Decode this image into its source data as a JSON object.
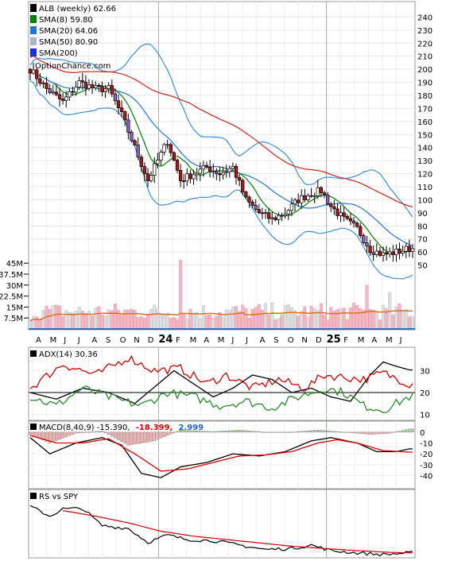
{
  "chart_data": [
    {
      "type": "candlestick",
      "panel": "price",
      "legend": [
        {
          "label": "ALB (weekly) 62.66",
          "color": "#000000"
        },
        {
          "label": "SMA(8) 59.80",
          "color": "#008000"
        },
        {
          "label": "SMA(20) 64.06",
          "color": "#1f77d0"
        },
        {
          "label": "SMA(50) 80.90",
          "color": "#aab4c8"
        },
        {
          "label": "SMA(200)",
          "color": "#1c2fd8"
        }
      ],
      "watermark": "OptionChance.com",
      "y_ticks": [
        50,
        60,
        70,
        80,
        90,
        100,
        110,
        120,
        130,
        140,
        150,
        160,
        170,
        180,
        190,
        200,
        210,
        220,
        230,
        240
      ],
      "ylim": [
        40,
        250
      ],
      "x_ticks": [
        "A",
        "M",
        "J",
        "J",
        "A",
        "S",
        "O",
        "N",
        "D",
        "24",
        "F",
        "M",
        "A",
        "M",
        "J",
        "J",
        "A",
        "S",
        "O",
        "N",
        "D",
        "25",
        "F",
        "M",
        "A",
        "M",
        "J"
      ],
      "x_bold": [
        "24",
        "25"
      ],
      "close_anchors": [
        {
          "x": 0,
          "y": 200
        },
        {
          "x": 5,
          "y": 185
        },
        {
          "x": 10,
          "y": 175
        },
        {
          "x": 15,
          "y": 190
        },
        {
          "x": 20,
          "y": 185
        },
        {
          "x": 24,
          "y": 185
        },
        {
          "x": 28,
          "y": 165
        },
        {
          "x": 32,
          "y": 140
        },
        {
          "x": 36,
          "y": 115
        },
        {
          "x": 40,
          "y": 135
        },
        {
          "x": 42,
          "y": 145
        },
        {
          "x": 46,
          "y": 115
        },
        {
          "x": 50,
          "y": 120
        },
        {
          "x": 54,
          "y": 125
        },
        {
          "x": 58,
          "y": 120
        },
        {
          "x": 62,
          "y": 125
        },
        {
          "x": 66,
          "y": 100
        },
        {
          "x": 70,
          "y": 90
        },
        {
          "x": 74,
          "y": 85
        },
        {
          "x": 78,
          "y": 90
        },
        {
          "x": 82,
          "y": 100
        },
        {
          "x": 86,
          "y": 105
        },
        {
          "x": 89,
          "y": 107
        },
        {
          "x": 92,
          "y": 95
        },
        {
          "x": 96,
          "y": 85
        },
        {
          "x": 100,
          "y": 78
        },
        {
          "x": 104,
          "y": 62
        },
        {
          "x": 108,
          "y": 58
        },
        {
          "x": 112,
          "y": 60
        },
        {
          "x": 116,
          "y": 62.66
        }
      ]
    },
    {
      "type": "bar",
      "panel": "volume",
      "y_ticks": [
        "7.5M",
        "15M",
        "22.5M",
        "30M",
        "37.5M",
        "45M"
      ],
      "ylim": [
        0,
        50
      ],
      "unit": "M",
      "spike_weeks": [
        {
          "x": 46,
          "v": 47
        },
        {
          "x": 103,
          "v": 30
        },
        {
          "x": 110,
          "v": 25
        }
      ]
    },
    {
      "type": "line",
      "panel": "adx",
      "legend": [
        {
          "label": "ADX(14) 30.36",
          "color": "#000000"
        }
      ],
      "y_ticks": [
        10,
        20,
        30
      ],
      "ylim": [
        8,
        40
      ],
      "series": [
        {
          "color": "#000000",
          "anchors": [
            {
              "x": 0,
              "y": 20
            },
            {
              "x": 8,
              "y": 17
            },
            {
              "x": 16,
              "y": 22
            },
            {
              "x": 24,
              "y": 20
            },
            {
              "x": 32,
              "y": 15
            },
            {
              "x": 40,
              "y": 25
            },
            {
              "x": 44,
              "y": 30
            },
            {
              "x": 50,
              "y": 24
            },
            {
              "x": 56,
              "y": 18
            },
            {
              "x": 62,
              "y": 22
            },
            {
              "x": 68,
              "y": 28
            },
            {
              "x": 74,
              "y": 26
            },
            {
              "x": 80,
              "y": 20
            },
            {
              "x": 86,
              "y": 22
            },
            {
              "x": 92,
              "y": 18
            },
            {
              "x": 98,
              "y": 16
            },
            {
              "x": 104,
              "y": 28
            },
            {
              "x": 108,
              "y": 34
            },
            {
              "x": 112,
              "y": 32
            },
            {
              "x": 116,
              "y": 30.36
            }
          ]
        },
        {
          "color": "#d00000",
          "anchors": [
            {
              "x": 0,
              "y": 22
            },
            {
              "x": 10,
              "y": 33
            },
            {
              "x": 20,
              "y": 28
            },
            {
              "x": 30,
              "y": 36
            },
            {
              "x": 38,
              "y": 30
            },
            {
              "x": 46,
              "y": 31
            },
            {
              "x": 54,
              "y": 24
            },
            {
              "x": 60,
              "y": 28
            },
            {
              "x": 68,
              "y": 22
            },
            {
              "x": 76,
              "y": 26
            },
            {
              "x": 84,
              "y": 22
            },
            {
              "x": 90,
              "y": 28
            },
            {
              "x": 96,
              "y": 27
            },
            {
              "x": 102,
              "y": 26
            },
            {
              "x": 108,
              "y": 29
            },
            {
              "x": 116,
              "y": 24
            }
          ]
        },
        {
          "color": "#2a8a2a",
          "anchors": [
            {
              "x": 0,
              "y": 18
            },
            {
              "x": 8,
              "y": 14
            },
            {
              "x": 16,
              "y": 22
            },
            {
              "x": 26,
              "y": 17
            },
            {
              "x": 34,
              "y": 14
            },
            {
              "x": 42,
              "y": 20
            },
            {
              "x": 50,
              "y": 18
            },
            {
              "x": 58,
              "y": 14
            },
            {
              "x": 66,
              "y": 16
            },
            {
              "x": 74,
              "y": 13
            },
            {
              "x": 82,
              "y": 18
            },
            {
              "x": 90,
              "y": 22
            },
            {
              "x": 96,
              "y": 20
            },
            {
              "x": 102,
              "y": 14
            },
            {
              "x": 108,
              "y": 12
            },
            {
              "x": 116,
              "y": 18
            }
          ]
        }
      ]
    },
    {
      "type": "line",
      "panel": "macd",
      "legend": [
        {
          "label": "MACD(8,40,9) -15.390,",
          "color": "#000000"
        },
        {
          "label": "-18.399,",
          "color": "#e00000"
        },
        {
          "label": "2.999",
          "color": "#1f5fd0"
        }
      ],
      "y_ticks": [
        0,
        -10,
        -20,
        -30,
        -40
      ],
      "ylim": [
        -50,
        8
      ],
      "series": [
        {
          "color": "#000000",
          "anchors": [
            {
              "x": 0,
              "y": -5
            },
            {
              "x": 6,
              "y": -20
            },
            {
              "x": 14,
              "y": -10
            },
            {
              "x": 22,
              "y": -5
            },
            {
              "x": 28,
              "y": -12
            },
            {
              "x": 34,
              "y": -38
            },
            {
              "x": 40,
              "y": -42
            },
            {
              "x": 46,
              "y": -32
            },
            {
              "x": 54,
              "y": -28
            },
            {
              "x": 62,
              "y": -20
            },
            {
              "x": 70,
              "y": -22
            },
            {
              "x": 78,
              "y": -18
            },
            {
              "x": 86,
              "y": -8
            },
            {
              "x": 92,
              "y": -5
            },
            {
              "x": 100,
              "y": -10
            },
            {
              "x": 106,
              "y": -18
            },
            {
              "x": 112,
              "y": -18
            },
            {
              "x": 116,
              "y": -15.39
            }
          ]
        },
        {
          "color": "#e00000",
          "anchors": [
            {
              "x": 0,
              "y": -3
            },
            {
              "x": 8,
              "y": -10
            },
            {
              "x": 16,
              "y": -10
            },
            {
              "x": 24,
              "y": -6
            },
            {
              "x": 32,
              "y": -20
            },
            {
              "x": 40,
              "y": -36
            },
            {
              "x": 48,
              "y": -34
            },
            {
              "x": 56,
              "y": -28
            },
            {
              "x": 64,
              "y": -22
            },
            {
              "x": 72,
              "y": -21
            },
            {
              "x": 80,
              "y": -18
            },
            {
              "x": 88,
              "y": -10
            },
            {
              "x": 94,
              "y": -7
            },
            {
              "x": 100,
              "y": -10
            },
            {
              "x": 108,
              "y": -17
            },
            {
              "x": 116,
              "y": -18.399
            }
          ]
        }
      ],
      "histogram_anchors": [
        {
          "x": 0,
          "y": -2
        },
        {
          "x": 6,
          "y": -10
        },
        {
          "x": 14,
          "y": -1
        },
        {
          "x": 22,
          "y": 1
        },
        {
          "x": 30,
          "y": -12
        },
        {
          "x": 38,
          "y": -8
        },
        {
          "x": 46,
          "y": 2
        },
        {
          "x": 56,
          "y": 0.5
        },
        {
          "x": 64,
          "y": 2
        },
        {
          "x": 72,
          "y": 0
        },
        {
          "x": 80,
          "y": 0
        },
        {
          "x": 88,
          "y": 2
        },
        {
          "x": 96,
          "y": 0
        },
        {
          "x": 104,
          "y": -2
        },
        {
          "x": 110,
          "y": -1
        },
        {
          "x": 116,
          "y": 2.999
        }
      ],
      "hist_colors": {
        "pos": "#a8d8a0",
        "neg": "#f0b0b0"
      }
    },
    {
      "type": "line",
      "panel": "rs",
      "legend": [
        {
          "label": "RS vs SPY",
          "color": "#000000"
        }
      ],
      "series": [
        {
          "color": "#000000",
          "anchors": [
            {
              "x": 0,
              "y": 0.9
            },
            {
              "x": 6,
              "y": 0.72
            },
            {
              "x": 10,
              "y": 0.85
            },
            {
              "x": 16,
              "y": 0.86
            },
            {
              "x": 22,
              "y": 0.55
            },
            {
              "x": 30,
              "y": 0.5
            },
            {
              "x": 36,
              "y": 0.25
            },
            {
              "x": 42,
              "y": 0.38
            },
            {
              "x": 48,
              "y": 0.3
            },
            {
              "x": 56,
              "y": 0.28
            },
            {
              "x": 64,
              "y": 0.2
            },
            {
              "x": 72,
              "y": 0.12
            },
            {
              "x": 80,
              "y": 0.14
            },
            {
              "x": 86,
              "y": 0.2
            },
            {
              "x": 92,
              "y": 0.1
            },
            {
              "x": 100,
              "y": 0.06
            },
            {
              "x": 108,
              "y": 0.03
            },
            {
              "x": 116,
              "y": 0.06
            }
          ]
        },
        {
          "color": "#d00000",
          "anchors": [
            {
              "x": 10,
              "y": 0.82
            },
            {
              "x": 20,
              "y": 0.72
            },
            {
              "x": 30,
              "y": 0.6
            },
            {
              "x": 40,
              "y": 0.45
            },
            {
              "x": 50,
              "y": 0.36
            },
            {
              "x": 60,
              "y": 0.3
            },
            {
              "x": 70,
              "y": 0.24
            },
            {
              "x": 80,
              "y": 0.18
            },
            {
              "x": 90,
              "y": 0.14
            },
            {
              "x": 100,
              "y": 0.1
            },
            {
              "x": 110,
              "y": 0.07
            },
            {
              "x": 116,
              "y": 0.06
            }
          ]
        }
      ]
    }
  ]
}
